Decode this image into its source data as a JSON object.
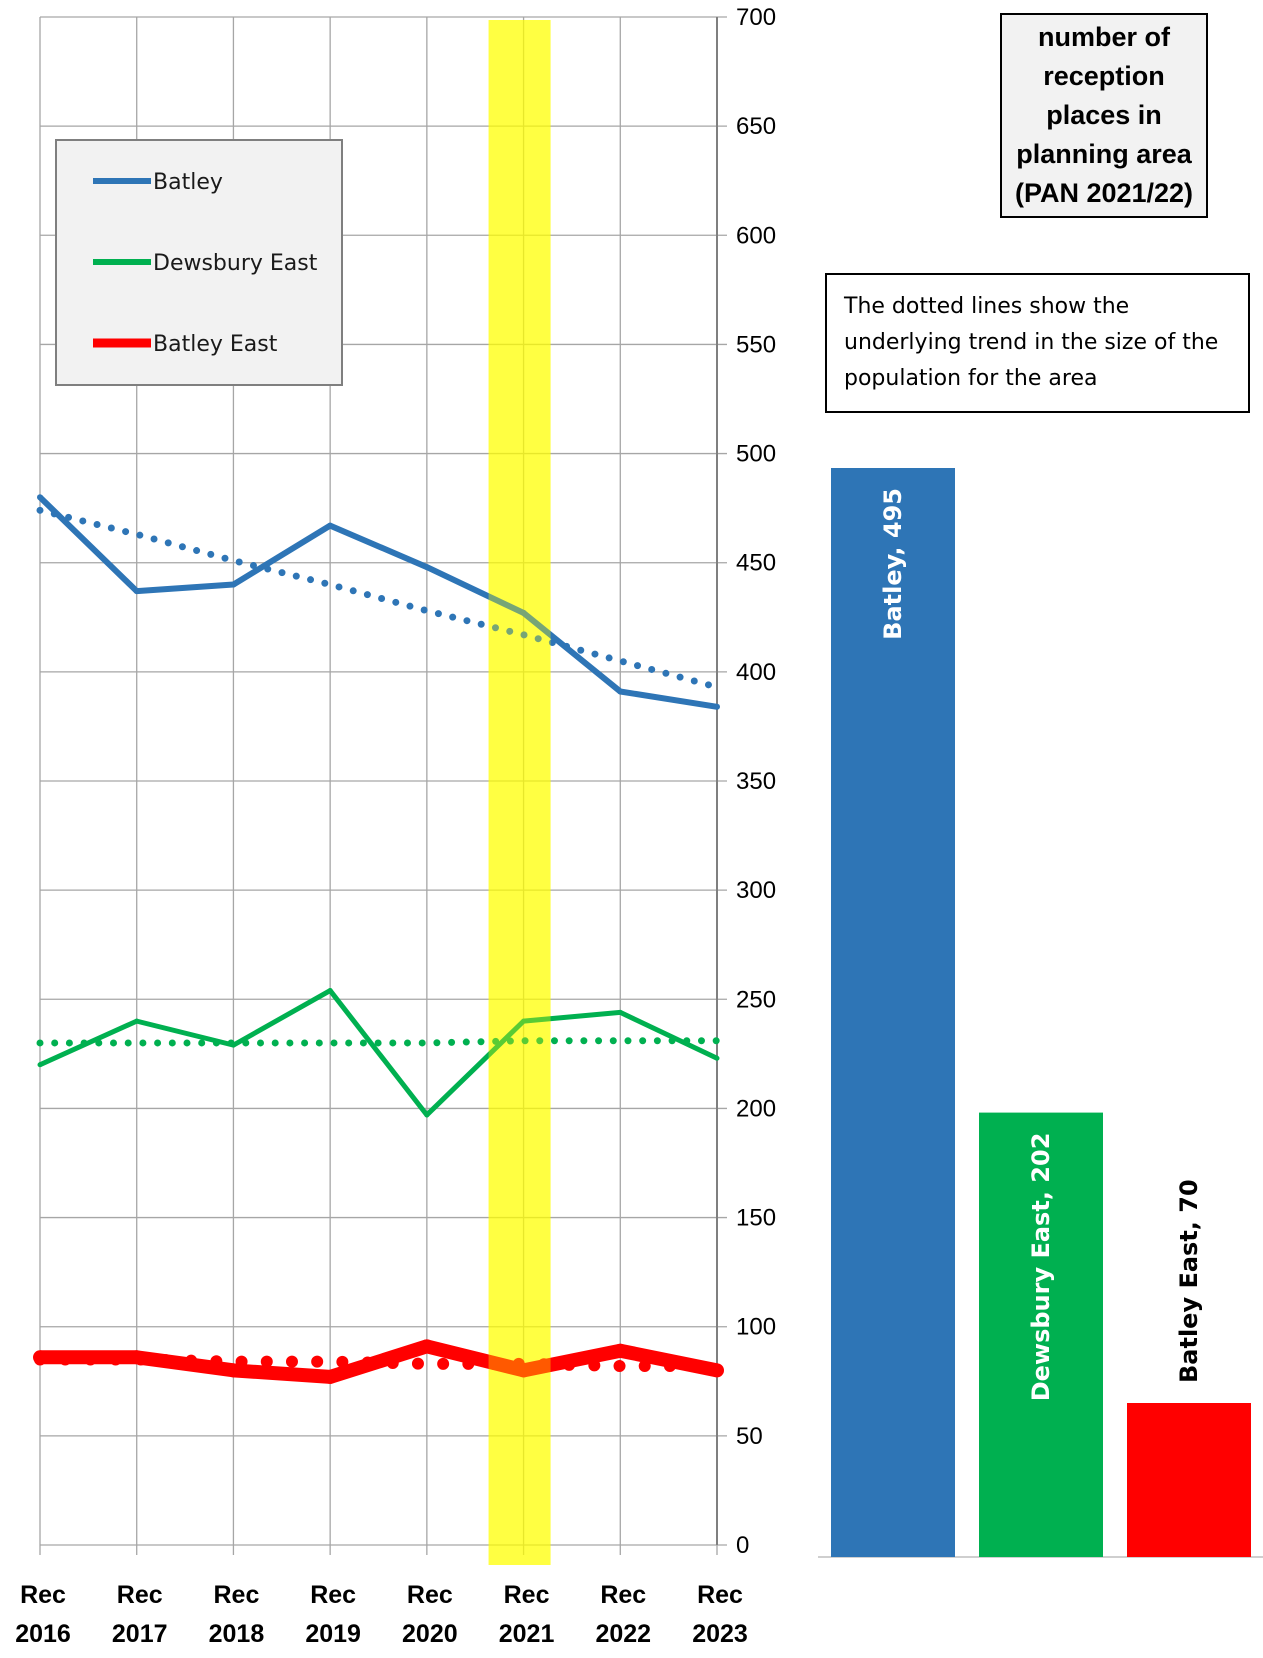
{
  "chart_data": {
    "type": "line",
    "title": "",
    "xlabel": "",
    "ylabel": "",
    "categories": [
      "Rec 2016",
      "Rec 2017",
      "Rec 2018",
      "Rec 2019",
      "Rec 2020",
      "Rec 2021",
      "Rec 2022",
      "Rec 2023"
    ],
    "ylim": [
      0,
      700
    ],
    "ytick_step": 50,
    "grid": true,
    "highlight_category": "Rec 2021",
    "highlight_color": "#ffff00",
    "legend_position": "top-left",
    "series": [
      {
        "name": "Batley",
        "color": "#2e75b6",
        "values": [
          480,
          437,
          440,
          467,
          448,
          427,
          391,
          384
        ],
        "trend": [
          474,
          463,
          451,
          440,
          428,
          417,
          405,
          393
        ]
      },
      {
        "name": "Dewsbury East",
        "color": "#00b050",
        "values": [
          220,
          240,
          229,
          254,
          197,
          240,
          244,
          223
        ],
        "trend": [
          230,
          230,
          230,
          230,
          230,
          231,
          231,
          231
        ]
      },
      {
        "name": "Batley East",
        "color": "#ff0000",
        "values": [
          86,
          86,
          80,
          77,
          91,
          80,
          89,
          80
        ],
        "trend": [
          85,
          85,
          84,
          84,
          83,
          83,
          82,
          82
        ]
      }
    ],
    "pan_box_text": "number of\nreception\nplaces in\nplanning area\n(PAN 2021/22)",
    "note_text": "The dotted lines show the underlying trend in the size of the population for the area",
    "bars": [
      {
        "label": "Batley, 495",
        "value": 495,
        "color": "#2e75b6",
        "label_color": "#ffffff"
      },
      {
        "label": "Dewsbury East, 202",
        "value": 202,
        "color": "#00b050",
        "label_color": "#ffffff"
      },
      {
        "label": "Batley East, 70",
        "value": 70,
        "color": "#ff0000",
        "label_color": "#000000"
      }
    ]
  }
}
